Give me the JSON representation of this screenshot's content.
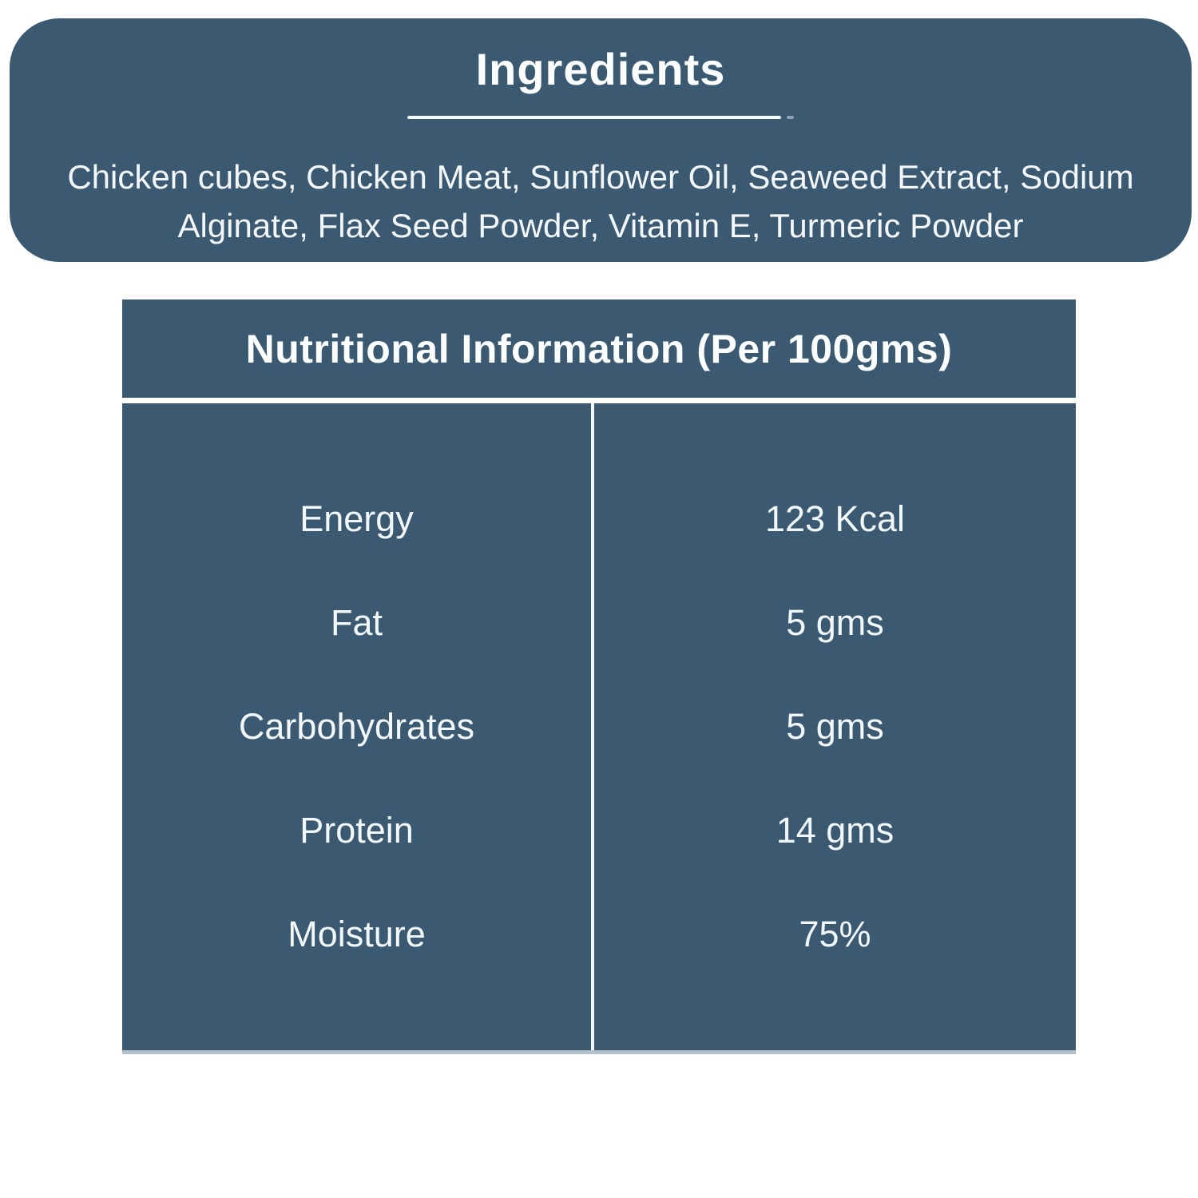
{
  "colors": {
    "card_background": "#3b5a72",
    "page_background": "#ffffff",
    "text": "#f3f7f9",
    "divider": "#f2f7f9",
    "table_bottom_edge": "#b5c2cb"
  },
  "ingredients_card": {
    "title": "Ingredients",
    "lines": [
      "Chicken cubes, Chicken Meat, Sunflower Oil, Seaweed Extract, Sodium",
      "Alginate, Flax Seed Powder, Vitamin E, Turmeric Powder"
    ]
  },
  "nutrition_table": {
    "title": "Nutritional Information (Per 100gms)",
    "rows": [
      {
        "label": "Energy",
        "value": "123 Kcal"
      },
      {
        "label": "Fat",
        "value": "5 gms"
      },
      {
        "label": "Carbohydrates",
        "value": "5 gms"
      },
      {
        "label": "Protein",
        "value": "14 gms"
      },
      {
        "label": "Moisture",
        "value": "75%"
      }
    ]
  }
}
